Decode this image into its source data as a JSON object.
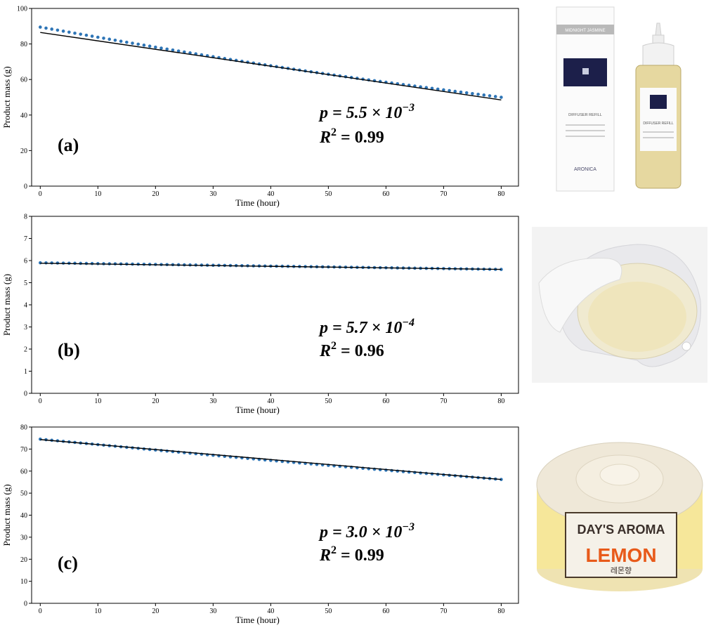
{
  "chart_data": [
    {
      "type": "scatter",
      "panel_label": "(a)",
      "xlabel": "Time (hour)",
      "ylabel": "Product mass (g)",
      "xlim": [
        -1.5,
        83
      ],
      "ylim": [
        0,
        100
      ],
      "xticks": [
        0,
        10,
        20,
        30,
        40,
        50,
        60,
        70,
        80
      ],
      "yticks": [
        0,
        20,
        40,
        60,
        80,
        100
      ],
      "fit_line": {
        "x0": 0,
        "y0": 86.5,
        "x1": 80,
        "y1": 48.5
      },
      "points": {
        "x_start": 0,
        "x_end": 80,
        "count": 81,
        "y_start": 89.5,
        "y_end": 50,
        "bow": -2.0
      },
      "annotation_p_prefix": "p = 5.5 × 10",
      "annotation_p_exp": "−3",
      "annotation_r_prefix": "R",
      "annotation_r_exp": "2",
      "annotation_r_value": " = 0.99"
    },
    {
      "type": "scatter",
      "panel_label": "(b)",
      "xlabel": "Time (hour)",
      "ylabel": "Product mass (g)",
      "xlim": [
        -1.5,
        83
      ],
      "ylim": [
        0,
        8
      ],
      "xticks": [
        0,
        10,
        20,
        30,
        40,
        50,
        60,
        70,
        80
      ],
      "yticks": [
        0,
        1,
        2,
        3,
        4,
        5,
        6,
        7,
        8
      ],
      "fit_line": {
        "x0": 0,
        "y0": 5.88,
        "x1": 80,
        "y1": 5.6
      },
      "points": {
        "x_start": 0,
        "x_end": 80,
        "count": 81,
        "y_start": 5.9,
        "y_end": 5.6,
        "bow": 0
      },
      "annotation_p_prefix": "p = 5.7 × 10",
      "annotation_p_exp": "−4",
      "annotation_r_prefix": "R",
      "annotation_r_exp": "2",
      "annotation_r_value": " = 0.96"
    },
    {
      "type": "scatter",
      "panel_label": "(c)",
      "xlabel": "Time (hour)",
      "ylabel": "Product mass (g)",
      "xlim": [
        -1.5,
        83
      ],
      "ylim": [
        0,
        80
      ],
      "xticks": [
        0,
        10,
        20,
        30,
        40,
        50,
        60,
        70,
        80
      ],
      "yticks": [
        0,
        10,
        20,
        30,
        40,
        50,
        60,
        70,
        80
      ],
      "fit_line": {
        "x0": 0,
        "y0": 74.3,
        "x1": 80,
        "y1": 56.2
      },
      "points": {
        "x_start": 0,
        "x_end": 80,
        "count": 81,
        "y_start": 74.5,
        "y_end": 56.2,
        "bow": -0.5
      },
      "annotation_p_prefix": "p = 3.0 × 10",
      "annotation_p_exp": "−3",
      "annotation_r_prefix": "R",
      "annotation_r_exp": "2",
      "annotation_r_value": " = 0.99"
    }
  ],
  "photos": {
    "a": {
      "box_brand": "MIDNIGHT JASMINE",
      "box_text": "DIFFUSER REFILL",
      "box_logo": "ARONICA",
      "bottle_text": "DIFFUSER REFILL"
    },
    "c": {
      "brand": "DAY'S AROMA",
      "product": "LEMON",
      "korean": "레몬향"
    }
  },
  "colors": {
    "points": "#2e75b6",
    "fit_line": "#000000",
    "axes": "#000000"
  }
}
